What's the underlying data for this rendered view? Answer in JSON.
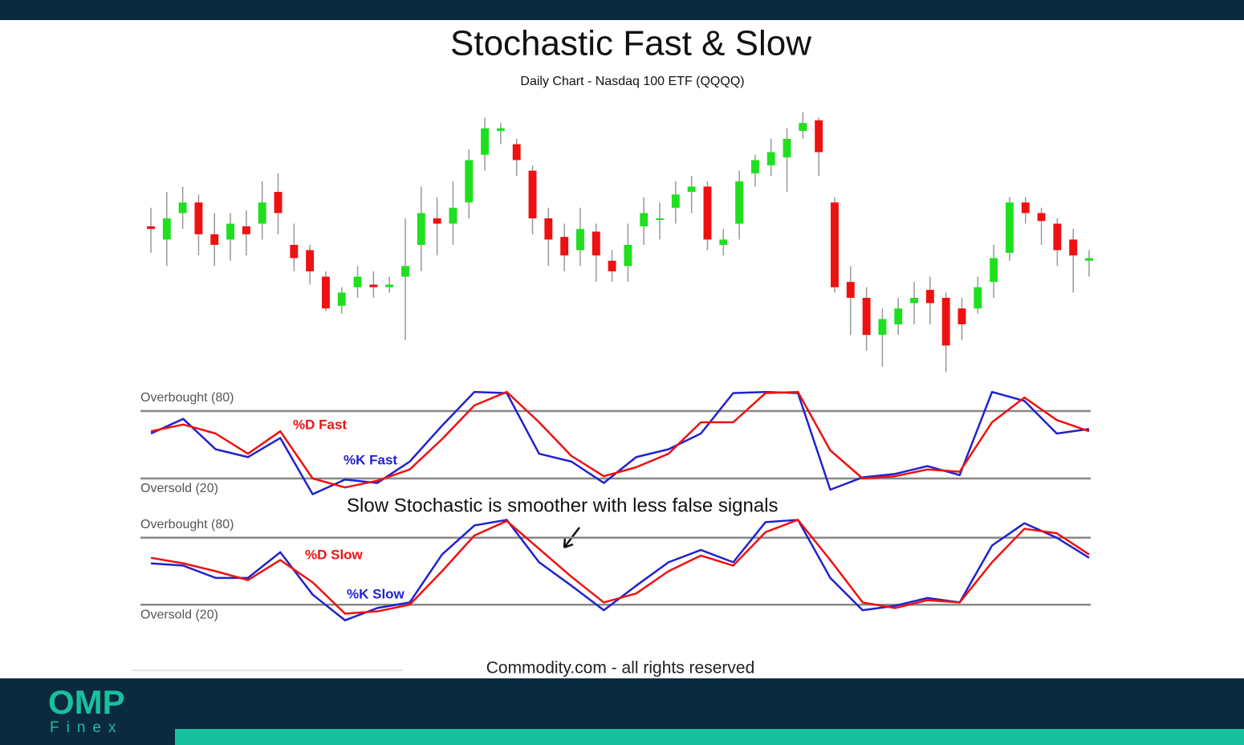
{
  "chart_data": [
    {
      "type": "candlestick",
      "title": "Stochastic Fast & Slow",
      "subtitle": "Daily Chart - Nasdaq 100 ETF (QQQQ)",
      "ylim": [
        0,
        100
      ],
      "up_color": "#1fe01f",
      "down_color": "#ee1111",
      "open": [
        57,
        52,
        62,
        66,
        54,
        52,
        57,
        58,
        70,
        50,
        48,
        38,
        27,
        34,
        35,
        34,
        38,
        50,
        60,
        58,
        66,
        84,
        93,
        88,
        78,
        60,
        53,
        48,
        55,
        44,
        42,
        57,
        60,
        64,
        70,
        72,
        50,
        58,
        77,
        80,
        83,
        93,
        97,
        66,
        36,
        30,
        16,
        20,
        28,
        33,
        30,
        26,
        26,
        36,
        47,
        66,
        62,
        58,
        52,
        44
      ],
      "high": [
        64,
        70,
        72,
        69,
        62,
        62,
        63,
        74,
        77,
        58,
        50,
        40,
        34,
        42,
        40,
        38,
        60,
        72,
        68,
        74,
        86,
        98,
        96,
        90,
        80,
        64,
        58,
        64,
        58,
        48,
        58,
        68,
        66,
        74,
        76,
        74,
        56,
        78,
        84,
        90,
        94,
        100,
        98,
        68,
        42,
        34,
        26,
        30,
        36,
        38,
        32,
        30,
        38,
        50,
        68,
        68,
        64,
        60,
        56,
        48
      ],
      "low": [
        47,
        42,
        56,
        46,
        42,
        44,
        46,
        52,
        54,
        40,
        35,
        25,
        24,
        30,
        30,
        32,
        14,
        40,
        46,
        50,
        60,
        78,
        88,
        76,
        54,
        42,
        40,
        42,
        36,
        36,
        36,
        50,
        52,
        58,
        62,
        48,
        46,
        52,
        72,
        76,
        70,
        90,
        76,
        32,
        16,
        10,
        4,
        16,
        20,
        20,
        2,
        14,
        24,
        30,
        44,
        58,
        50,
        42,
        32,
        38
      ],
      "close": [
        56,
        60,
        66,
        54,
        50,
        58,
        54,
        66,
        62,
        45,
        40,
        26,
        32,
        38,
        34,
        35,
        42,
        62,
        58,
        64,
        82,
        94,
        94,
        82,
        60,
        52,
        46,
        56,
        46,
        40,
        50,
        62,
        60,
        69,
        72,
        52,
        52,
        74,
        82,
        85,
        90,
        96,
        85,
        34,
        30,
        16,
        22,
        26,
        30,
        28,
        12,
        20,
        34,
        45,
        66,
        62,
        59,
        48,
        46,
        45
      ]
    },
    {
      "type": "line",
      "ylim": [
        0,
        100
      ],
      "yticks": [
        {
          "value": 80,
          "label": "Overbought (80)"
        },
        {
          "value": 20,
          "label": "Oversold (20)"
        }
      ],
      "series": [
        {
          "name": "%K Fast",
          "color": "#2222cc",
          "values": [
            60,
            73,
            46,
            39,
            56,
            6,
            19,
            16,
            35,
            67,
            97,
            96,
            42,
            35,
            16,
            39,
            46,
            60,
            96,
            97,
            96,
            10,
            21,
            24,
            31,
            23,
            97,
            89,
            60,
            64
          ]
        },
        {
          "name": "%D Fast",
          "color": "#ee1111",
          "values": [
            62,
            68,
            60,
            42,
            62,
            20,
            12,
            18,
            28,
            55,
            85,
            97,
            70,
            40,
            22,
            30,
            42,
            70,
            70,
            96,
            97,
            45,
            20,
            22,
            28,
            26,
            70,
            92,
            72,
            62
          ]
        }
      ]
    },
    {
      "type": "line",
      "ylim": [
        0,
        100
      ],
      "annotation": "Slow Stochastic is smoother with less false signals",
      "yticks": [
        {
          "value": 80,
          "label": "Overbought (80)"
        },
        {
          "value": 20,
          "label": "Oversold (20)"
        }
      ],
      "series": [
        {
          "name": "%K Slow",
          "color": "#2222cc",
          "values": [
            57,
            55,
            44,
            44,
            67,
            29,
            6,
            17,
            22,
            65,
            91,
            96,
            58,
            37,
            15,
            37,
            58,
            69,
            58,
            94,
            96,
            44,
            15,
            19,
            26,
            22,
            73,
            93,
            80,
            62
          ]
        },
        {
          "name": "%D Slow",
          "color": "#ee1111",
          "values": [
            62,
            57,
            50,
            42,
            60,
            40,
            12,
            14,
            20,
            50,
            82,
            95,
            70,
            45,
            22,
            30,
            50,
            64,
            55,
            85,
            96,
            60,
            22,
            17,
            24,
            22,
            58,
            88,
            84,
            65
          ]
        }
      ]
    }
  ],
  "credit": "Commodity.com - all rights reserved",
  "brand": {
    "name": "OMP",
    "sub": "Finex"
  }
}
